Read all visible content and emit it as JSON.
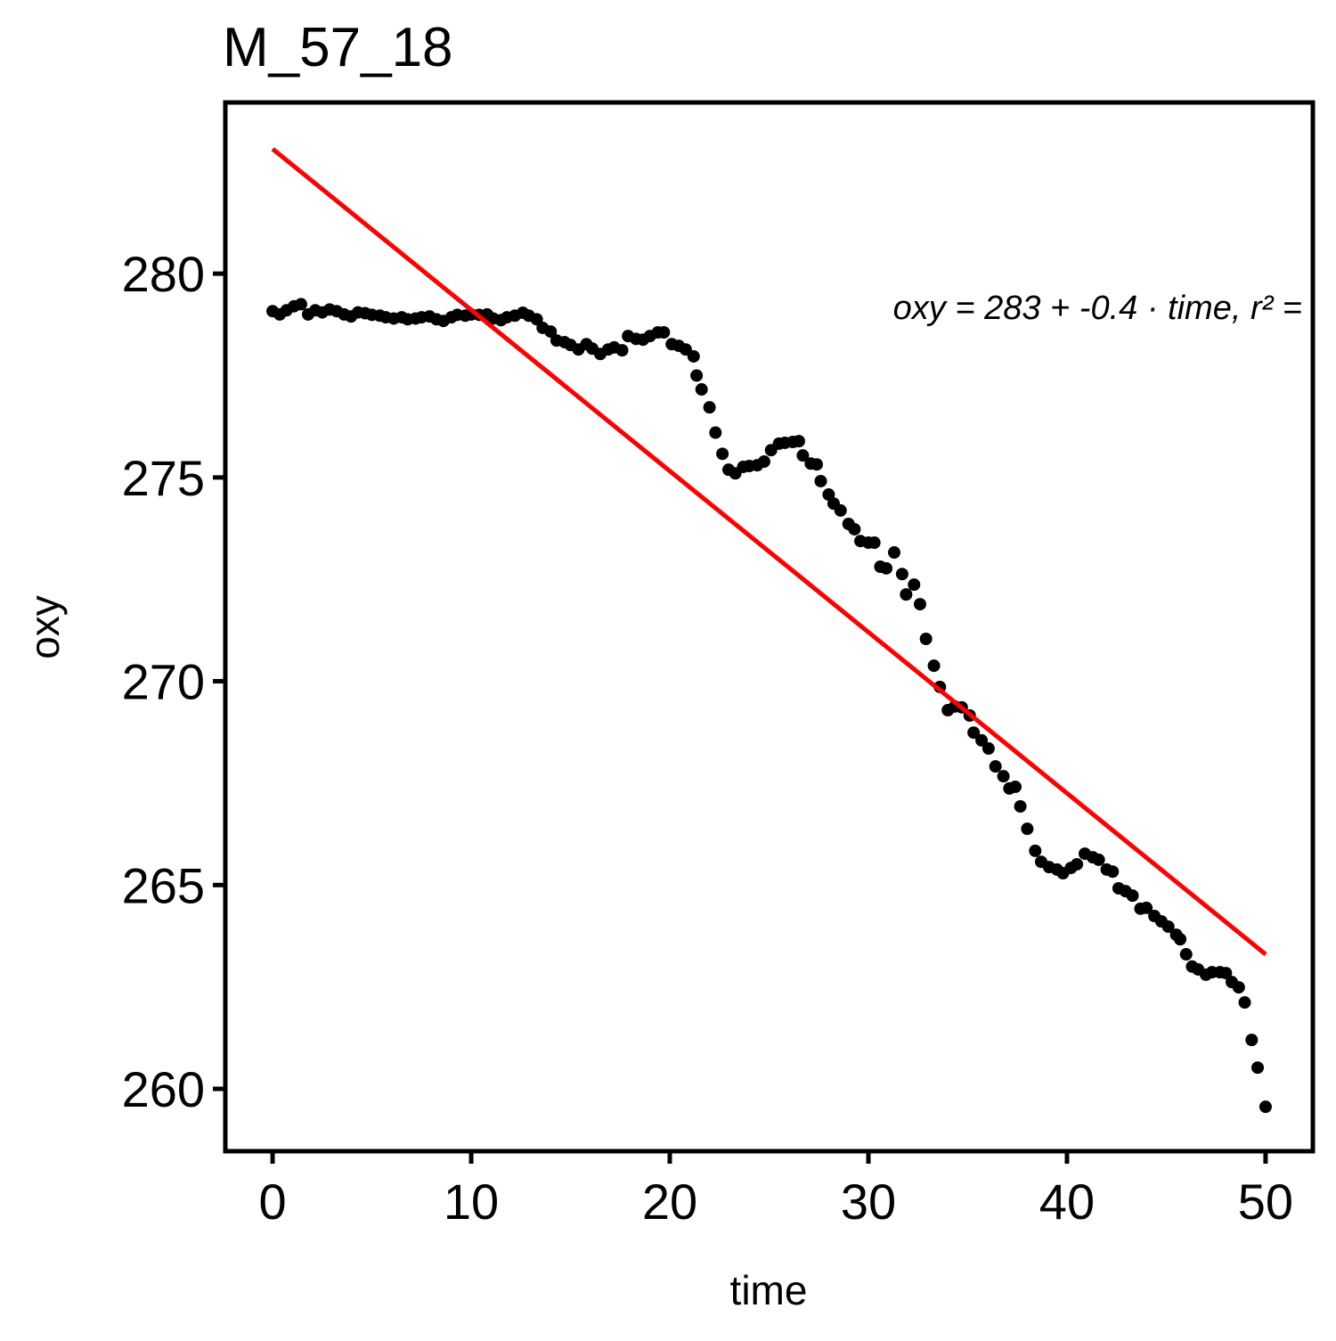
{
  "chart_data": {
    "type": "scatter",
    "title": "M_57_18",
    "x_label": "time",
    "y_label": "oxy",
    "x": [
      0,
      0.36,
      0.7,
      1.08,
      1.43,
      1.79,
      2.15,
      2.5,
      2.87,
      3.23,
      3.6,
      3.95,
      4.3,
      4.66,
      5.0,
      5.4,
      5.7,
      6.1,
      6.5,
      6.8,
      7.2,
      7.5,
      7.9,
      8.25,
      8.6,
      9.0,
      9.3,
      9.7,
      10.0,
      10.4,
      10.8,
      11.1,
      11.5,
      11.8,
      12.2,
      12.6,
      12.9,
      13.3,
      13.6,
      14.0,
      14.3,
      14.7,
      15.0,
      15.4,
      15.8,
      16.1,
      16.5,
      16.9,
      17.2,
      17.6,
      17.9,
      18.3,
      18.65,
      19.0,
      19.4,
      19.7,
      20.1,
      20.45,
      20.8,
      21.2,
      21.35,
      21.6,
      22.0,
      22.3,
      22.65,
      22.96,
      23.3,
      23.7,
      24.0,
      24.4,
      24.75,
      25.1,
      25.5,
      25.8,
      26.2,
      26.5,
      26.7,
      27.1,
      27.4,
      27.6,
      28.0,
      28.25,
      28.6,
      29.0,
      29.3,
      29.6,
      30.0,
      30.3,
      30.6,
      30.9,
      31.3,
      31.7,
      31.9,
      32.3,
      32.6,
      32.9,
      33.3,
      33.6,
      34.0,
      34.35,
      34.7,
      35.1,
      35.3,
      35.7,
      36.05,
      36.4,
      36.8,
      37.1,
      37.4,
      37.65,
      38.0,
      38.4,
      38.7,
      39.1,
      39.5,
      39.8,
      40.2,
      40.5,
      40.9,
      41.3,
      41.6,
      42.0,
      42.3,
      42.6,
      42.95,
      43.3,
      43.7,
      44.0,
      44.4,
      44.75,
      45.1,
      45.5,
      45.7,
      46.0,
      46.3,
      46.6,
      47.0,
      47.3,
      47.7,
      48.0,
      48.3,
      48.65,
      48.95,
      49.3,
      49.6,
      50.0
    ],
    "y": [
      279.08,
      279.0,
      279.1,
      279.2,
      279.25,
      279.0,
      279.1,
      279.05,
      279.12,
      279.08,
      279.0,
      278.95,
      279.05,
      279.03,
      278.99,
      278.97,
      278.93,
      278.9,
      278.93,
      278.88,
      278.9,
      278.93,
      278.95,
      278.88,
      278.84,
      278.93,
      278.99,
      278.97,
      279.0,
      278.99,
      279.0,
      278.9,
      278.86,
      278.93,
      278.97,
      279.04,
      278.97,
      278.88,
      278.67,
      278.58,
      278.36,
      278.32,
      278.25,
      278.14,
      278.27,
      278.16,
      278.03,
      278.14,
      278.19,
      278.12,
      278.47,
      278.4,
      278.38,
      278.47,
      278.56,
      278.56,
      278.27,
      278.23,
      278.14,
      277.97,
      277.5,
      277.16,
      276.72,
      276.1,
      275.58,
      275.19,
      275.1,
      275.26,
      275.28,
      275.3,
      275.39,
      275.67,
      275.83,
      275.85,
      275.87,
      275.89,
      275.54,
      275.34,
      275.32,
      274.91,
      274.58,
      274.36,
      274.19,
      273.86,
      273.73,
      273.44,
      273.4,
      273.4,
      272.81,
      272.77,
      273.16,
      272.63,
      272.13,
      272.37,
      271.89,
      271.04,
      270.38,
      269.86,
      269.29,
      269.38,
      269.36,
      269.16,
      268.74,
      268.55,
      268.35,
      267.91,
      267.67,
      267.37,
      267.41,
      266.93,
      266.38,
      265.84,
      265.57,
      265.44,
      265.38,
      265.29,
      265.42,
      265.51,
      265.77,
      265.68,
      265.62,
      265.38,
      265.33,
      264.92,
      264.85,
      264.74,
      264.42,
      264.44,
      264.24,
      264.11,
      263.98,
      263.78,
      263.67,
      263.3,
      263.0,
      262.93,
      262.8,
      262.86,
      262.86,
      262.84,
      262.62,
      262.49,
      262.12,
      261.2,
      260.52,
      259.56
    ],
    "color": "#000000",
    "fit": {
      "x": [
        0,
        50
      ],
      "y": [
        283.06,
        263.3
      ],
      "color": "#ff0000"
    },
    "annotation": "oxy = 283 + -0.4 · time,  r² =",
    "xlim": [
      -2.38,
      52.38
    ],
    "xticks": [
      0,
      10,
      20,
      30,
      40,
      50
    ],
    "ylim": [
      258.47,
      284.2
    ],
    "yticks": [
      260,
      265,
      270,
      275,
      280
    ]
  }
}
